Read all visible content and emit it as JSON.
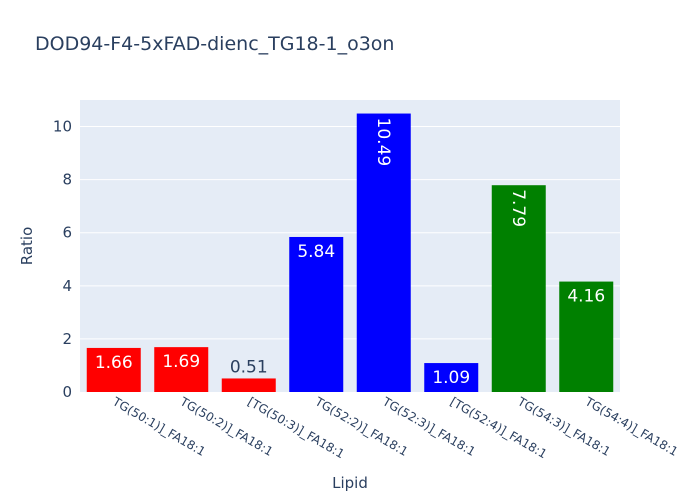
{
  "chart_data": {
    "type": "bar",
    "title": "DOD94-F4-5xFAD-dienc_TG18-1_o3on",
    "xlabel": "Lipid",
    "ylabel": "Ratio",
    "ylim": [
      0,
      11
    ],
    "yticks": [
      0,
      2,
      4,
      6,
      8,
      10
    ],
    "grid": true,
    "legend": "none",
    "categories": [
      "TG(50:1)]_FA18:1",
      "TG(50:2)]_FA18:1",
      "[TG(50:3)]_FA18:1",
      "TG(52:2)]_FA18:1",
      "TG(52:3)]_FA18:1",
      "[TG(52:4)]_FA18:1",
      "TG(54:3)]_FA18:1",
      "TG(54:4)]_FA18:1"
    ],
    "values": [
      1.66,
      1.69,
      0.51,
      5.84,
      10.49,
      1.09,
      7.79,
      4.16
    ],
    "data_labels": [
      "1.66",
      "1.69",
      "0.51",
      "5.84",
      "10.49",
      "1.09",
      "7.79",
      "4.16"
    ],
    "colors": [
      "#ff0000",
      "#ff0000",
      "#ff0000",
      "#0000ff",
      "#0000ff",
      "#0000ff",
      "#008000",
      "#008000"
    ],
    "plot_background": "#e5ecf6",
    "text_color": "#2a3f5f"
  }
}
